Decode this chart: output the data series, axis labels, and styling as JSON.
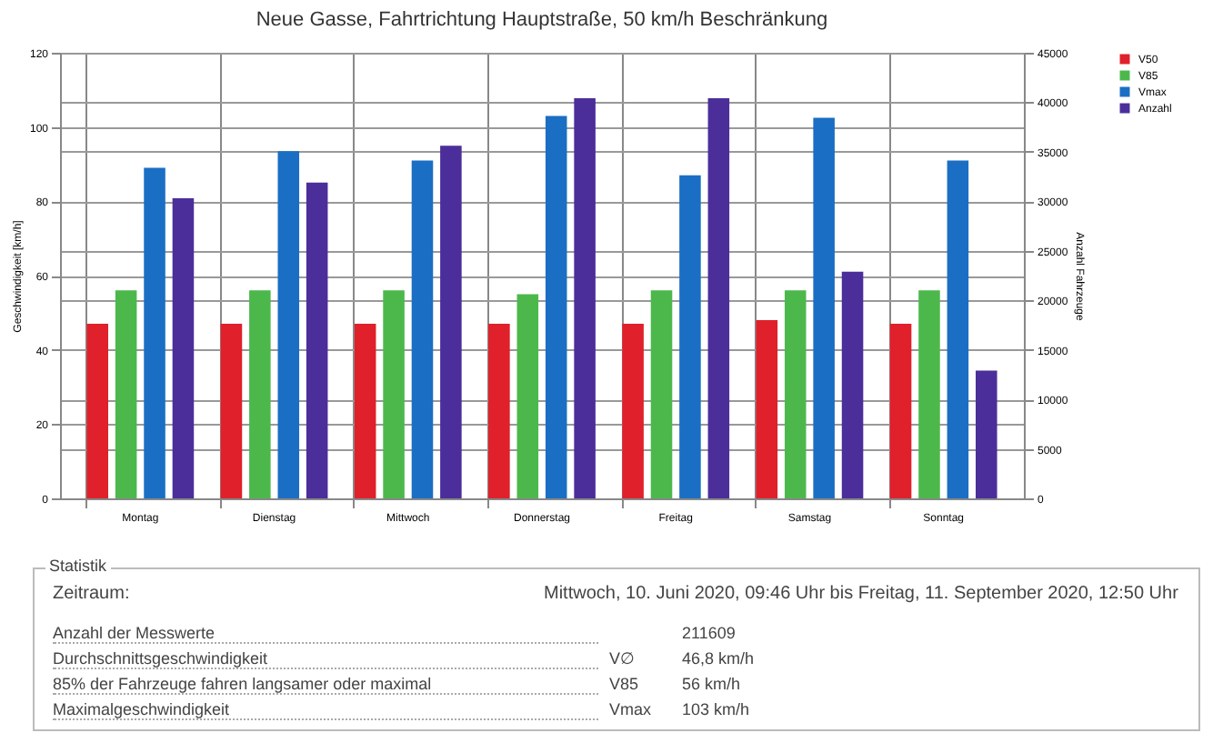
{
  "chart_data": {
    "type": "bar",
    "title": "Neue Gasse, Fahrtrichtung Hauptstraße, 50 km/h Beschränkung",
    "ylabel": "Geschwindigkeit [km/h]",
    "y2label": "Anzahl Fahrzeuge",
    "categories": [
      "Montag",
      "Dienstag",
      "Mittwoch",
      "Donnerstag",
      "Freitag",
      "Samstag",
      "Sonntag"
    ],
    "series": [
      {
        "name": "V50",
        "color": "#e0202a",
        "values": [
          47,
          47,
          47,
          47,
          47,
          48,
          47
        ]
      },
      {
        "name": "V85",
        "color": "#4cb84c",
        "values": [
          56,
          56,
          56,
          55,
          56,
          56,
          56
        ]
      },
      {
        "name": "Vmax",
        "color": "#1a6fc4",
        "values": [
          89,
          93.5,
          91,
          103,
          87,
          102.5,
          91
        ]
      },
      {
        "name": "Anzahl",
        "color": "#4b2e9a",
        "axis": "y2",
        "values": [
          30300,
          31900,
          35600,
          40400,
          40400,
          22900,
          12900
        ]
      }
    ],
    "ylim": [
      0,
      120
    ],
    "yticks": [
      0,
      20,
      40,
      60,
      80,
      100,
      120
    ],
    "y2lim": [
      0,
      45000
    ],
    "y2ticks": [
      0,
      5000,
      10000,
      15000,
      20000,
      25000,
      30000,
      35000,
      40000,
      45000
    ],
    "grid": true,
    "legend": "right",
    "annotations": [
      "Statistik",
      "Zeitraum:",
      "Mittwoch, 10. Juni 2020, 09:46 Uhr bis Freitag, 11. September 2020, 12:50 Uhr",
      "Anzahl der Messwerte",
      "211609",
      "Durchschnittsgeschwindigkeit",
      "V∅",
      "46,8 km/h",
      "85% der Fahrzeuge fahren langsamer oder maximal",
      "V85",
      "56 km/h",
      "Maximalgeschwindigkeit",
      "Vmax",
      "103 km/h"
    ]
  }
}
